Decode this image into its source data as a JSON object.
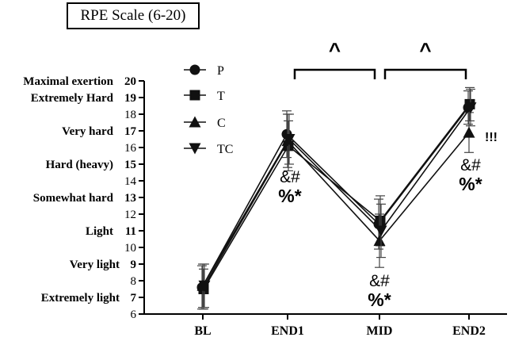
{
  "title": "RPE Scale (6-20)",
  "chart_data": {
    "type": "line",
    "categories": [
      "BL",
      "END1",
      "MID",
      "END2"
    ],
    "ylim": [
      6,
      20
    ],
    "yticks": [
      6,
      7,
      8,
      9,
      10,
      11,
      12,
      13,
      14,
      15,
      16,
      17,
      18,
      19,
      20
    ],
    "descriptors": [
      {
        "text": "Maximal exertion",
        "value": 20
      },
      {
        "text": "Extremely Hard",
        "value": 19
      },
      {
        "text": "Very hard",
        "value": 17
      },
      {
        "text": "Hard (heavy)",
        "value": 15
      },
      {
        "text": "Somewhat hard",
        "value": 13
      },
      {
        "text": "Light",
        "value": 11
      },
      {
        "text": "Very light",
        "value": 9
      },
      {
        "text": "Extremely light",
        "value": 7
      }
    ],
    "series": [
      {
        "name": "P",
        "marker": "circle",
        "values": [
          7.6,
          16.8,
          11.4,
          18.4
        ],
        "errors": [
          1.3,
          1.4,
          1.5,
          1.0
        ]
      },
      {
        "name": "T",
        "marker": "square",
        "values": [
          7.5,
          16.1,
          11.6,
          18.6
        ],
        "errors": [
          1.2,
          1.5,
          1.5,
          1.0
        ]
      },
      {
        "name": "C",
        "marker": "triangle-up",
        "values": [
          7.7,
          16.4,
          10.4,
          16.9
        ],
        "errors": [
          1.3,
          1.6,
          1.6,
          1.2
        ]
      },
      {
        "name": "TC",
        "marker": "triangle-down",
        "values": [
          7.7,
          16.5,
          11.0,
          18.4
        ],
        "errors": [
          1.3,
          1.5,
          1.6,
          1.1
        ]
      }
    ],
    "annotations": [
      {
        "line1": "&#",
        "line2": "%*",
        "category": "END1"
      },
      {
        "line1": "&#",
        "line2": "%*",
        "category": "MID"
      },
      {
        "line1": "&#",
        "line2": "%*",
        "category": "END2"
      },
      {
        "text": "!!!",
        "category": "END2"
      }
    ],
    "brackets": [
      {
        "from": "END1",
        "to": "MID",
        "label": "^"
      },
      {
        "from": "MID",
        "to": "END2",
        "label": "^"
      }
    ]
  }
}
